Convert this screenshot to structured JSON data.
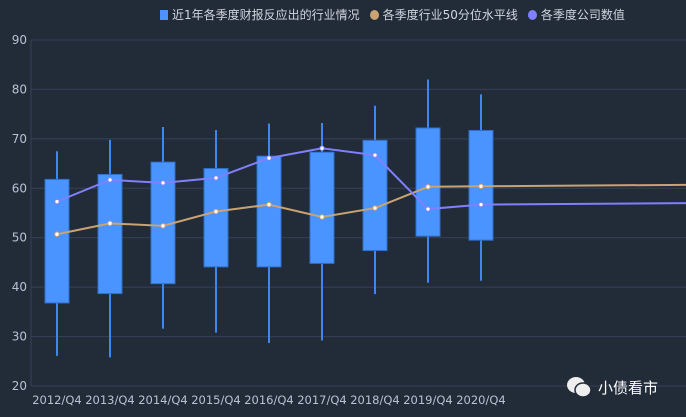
{
  "chart_data": {
    "type": "boxplot",
    "categories": [
      "2012/Q4",
      "2013/Q4",
      "2014/Q4",
      "2015/Q4",
      "2016/Q4",
      "2017/Q4",
      "2018/Q4",
      "2019/Q4",
      "2020/Q4"
    ],
    "ylim": [
      20,
      90
    ],
    "yticks": [
      20,
      30,
      40,
      50,
      60,
      70,
      80,
      90
    ],
    "grid": true,
    "legend_position": "top",
    "boxes": {
      "name": "近1年各季度财报反应出的行业情况",
      "color": "#4a94ff",
      "min": [
        26.1,
        25.8,
        31.6,
        30.8,
        28.7,
        29.2,
        38.6,
        40.9,
        41.3
      ],
      "q1": [
        36.8,
        38.7,
        40.7,
        44.1,
        44.1,
        44.8,
        47.4,
        50.3,
        49.5
      ],
      "q3": [
        61.8,
        62.8,
        65.3,
        64.0,
        66.5,
        67.3,
        69.7,
        72.2,
        71.7
      ],
      "max": [
        67.5,
        69.8,
        72.4,
        71.8,
        73.1,
        73.2,
        76.7,
        82.0,
        79.0
      ]
    },
    "series": [
      {
        "name": "各季度行业50分位水平线",
        "color": "#c9a372",
        "values": [
          50.7,
          52.9,
          52.4,
          55.3,
          56.7,
          54.2,
          56.0,
          60.3,
          60.4
        ]
      },
      {
        "name": "各季度公司数值",
        "color": "#8080ff",
        "values": [
          57.3,
          61.7,
          61.1,
          62.1,
          66.1,
          68.1,
          66.7,
          55.8,
          56.7
        ]
      }
    ]
  },
  "watermark": {
    "text": "小债看市",
    "icon": "wechat-icon"
  }
}
